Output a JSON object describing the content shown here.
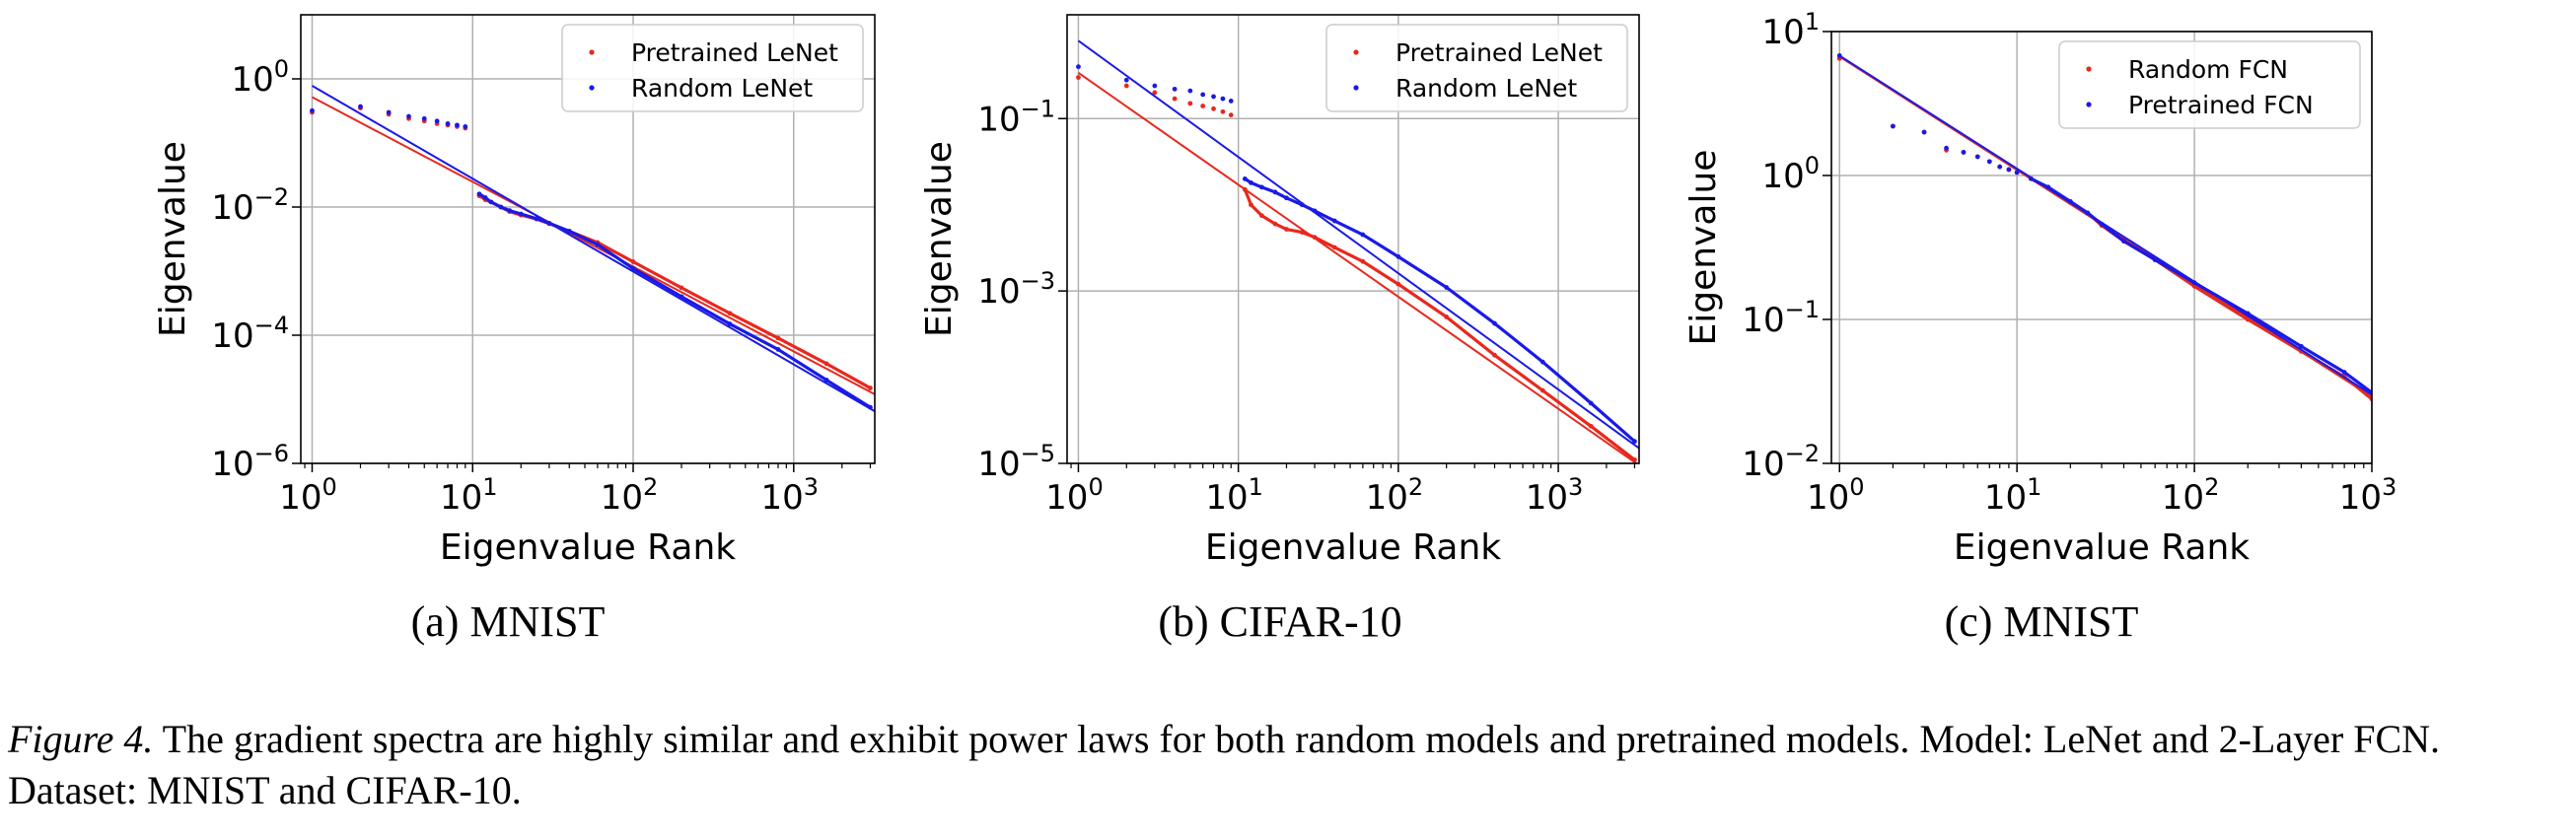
{
  "chart_data": [
    {
      "type": "scatter",
      "subcaption": "(a) MNIST",
      "xlabel": "Eigenvalue Rank",
      "ylabel": "Eigenvalue",
      "xscale": "log",
      "yscale": "log",
      "xlim": [
        0.85,
        3200
      ],
      "ylim": [
        1e-06,
        10
      ],
      "xticks": [
        1,
        10,
        100,
        1000
      ],
      "xtick_labels": [
        [
          "10",
          "0"
        ],
        [
          "10",
          "1"
        ],
        [
          "10",
          "2"
        ],
        [
          "10",
          "3"
        ]
      ],
      "yticks": [
        1e-06,
        0.0001,
        0.01,
        1
      ],
      "ytick_labels": [
        [
          "10",
          "−6"
        ],
        [
          "10",
          "−4"
        ],
        [
          "10",
          "−2"
        ],
        [
          "10",
          "0"
        ]
      ],
      "grid": true,
      "legend_position": "top-right",
      "series": [
        {
          "name": "Pretrained LeNet",
          "color": "#e8281e",
          "points": [
            [
              1,
              0.3
            ],
            [
              2,
              0.35
            ],
            [
              3,
              0.28
            ],
            [
              4,
              0.24
            ],
            [
              5,
              0.22
            ],
            [
              6,
              0.2
            ],
            [
              7,
              0.19
            ],
            [
              8,
              0.18
            ],
            [
              9,
              0.17
            ],
            [
              11,
              0.015
            ],
            [
              12,
              0.013
            ],
            [
              13,
              0.012
            ],
            [
              15,
              0.01
            ],
            [
              17,
              0.0085
            ],
            [
              20,
              0.0075
            ],
            [
              25,
              0.0065
            ],
            [
              30,
              0.0055
            ],
            [
              40,
              0.0042
            ],
            [
              60,
              0.0028
            ],
            [
              100,
              0.0014
            ],
            [
              200,
              0.00055
            ],
            [
              400,
              0.00022
            ],
            [
              800,
              9e-05
            ],
            [
              1600,
              3.6e-05
            ],
            [
              3000,
              1.5e-05
            ]
          ],
          "fit": {
            "x": [
              1,
              3200
            ],
            "y": [
              0.52,
              1.2e-05
            ]
          }
        },
        {
          "name": "Random LeNet",
          "color": "#1a1ae6",
          "points": [
            [
              1,
              0.32
            ],
            [
              2,
              0.37
            ],
            [
              3,
              0.3
            ],
            [
              4,
              0.26
            ],
            [
              5,
              0.24
            ],
            [
              6,
              0.22
            ],
            [
              7,
              0.2
            ],
            [
              8,
              0.19
            ],
            [
              9,
              0.18
            ],
            [
              11,
              0.016
            ],
            [
              12,
              0.014
            ],
            [
              13,
              0.012
            ],
            [
              15,
              0.01
            ],
            [
              17,
              0.0088
            ],
            [
              20,
              0.0078
            ],
            [
              25,
              0.0066
            ],
            [
              30,
              0.0056
            ],
            [
              40,
              0.0042
            ],
            [
              60,
              0.0026
            ],
            [
              100,
              0.0011
            ],
            [
              200,
              0.0004
            ],
            [
              400,
              0.00015
            ],
            [
              800,
              6e-05
            ],
            [
              1600,
              2e-05
            ],
            [
              3000,
              7.5e-06
            ]
          ],
          "fit": {
            "x": [
              1,
              3200
            ],
            "y": [
              0.78,
              6.5e-06
            ]
          }
        }
      ]
    },
    {
      "type": "scatter",
      "subcaption": "(b) CIFAR-10",
      "xlabel": "Eigenvalue Rank",
      "ylabel": "Eigenvalue",
      "xscale": "log",
      "yscale": "log",
      "xlim": [
        0.85,
        3200
      ],
      "ylim": [
        1e-05,
        1.6
      ],
      "xticks": [
        1,
        10,
        100,
        1000
      ],
      "xtick_labels": [
        [
          "10",
          "0"
        ],
        [
          "10",
          "1"
        ],
        [
          "10",
          "2"
        ],
        [
          "10",
          "3"
        ]
      ],
      "yticks": [
        1e-05,
        0.001,
        0.1
      ],
      "ytick_labels": [
        [
          "10",
          "−5"
        ],
        [
          "10",
          "−3"
        ],
        [
          "10",
          "−1"
        ]
      ],
      "grid": true,
      "legend_position": "top-right",
      "series": [
        {
          "name": "Pretrained LeNet",
          "color": "#e8281e",
          "points": [
            [
              1,
              0.3
            ],
            [
              2,
              0.24
            ],
            [
              3,
              0.2
            ],
            [
              4,
              0.17
            ],
            [
              5,
              0.15
            ],
            [
              6,
              0.14
            ],
            [
              7,
              0.13
            ],
            [
              8,
              0.12
            ],
            [
              9,
              0.11
            ],
            [
              11,
              0.015
            ],
            [
              12,
              0.01
            ],
            [
              14,
              0.0075
            ],
            [
              17,
              0.006
            ],
            [
              20,
              0.0052
            ],
            [
              25,
              0.0048
            ],
            [
              30,
              0.0042
            ],
            [
              40,
              0.0032
            ],
            [
              60,
              0.0022
            ],
            [
              100,
              0.0012
            ],
            [
              200,
              0.0005
            ],
            [
              400,
              0.00018
            ],
            [
              800,
              7e-05
            ],
            [
              1600,
              2.7e-05
            ],
            [
              3000,
              1.1e-05
            ]
          ],
          "fit": {
            "x": [
              1,
              3200
            ],
            "y": [
              0.34,
              9.5e-06
            ]
          }
        },
        {
          "name": "Random LeNet",
          "color": "#1a1ae6",
          "points": [
            [
              1,
              0.4
            ],
            [
              2,
              0.28
            ],
            [
              3,
              0.24
            ],
            [
              4,
              0.22
            ],
            [
              5,
              0.21
            ],
            [
              6,
              0.19
            ],
            [
              7,
              0.18
            ],
            [
              8,
              0.17
            ],
            [
              9,
              0.16
            ],
            [
              11,
              0.02
            ],
            [
              12,
              0.018
            ],
            [
              14,
              0.016
            ],
            [
              17,
              0.014
            ],
            [
              20,
              0.012
            ],
            [
              25,
              0.01
            ],
            [
              30,
              0.0085
            ],
            [
              40,
              0.0065
            ],
            [
              60,
              0.0045
            ],
            [
              100,
              0.0025
            ],
            [
              200,
              0.0011
            ],
            [
              400,
              0.00042
            ],
            [
              800,
              0.00015
            ],
            [
              1600,
              5e-05
            ],
            [
              3000,
              1.8e-05
            ]
          ],
          "fit": {
            "x": [
              1,
              3200
            ],
            "y": [
              0.8,
              1.5e-05
            ]
          }
        }
      ]
    },
    {
      "type": "scatter",
      "subcaption": "(c) MNIST",
      "xlabel": "Eigenvalue Rank",
      "ylabel": "Eigenvalue",
      "xscale": "log",
      "yscale": "log",
      "xlim": [
        0.9,
        1000
      ],
      "ylim": [
        0.01,
        10
      ],
      "xticks": [
        1,
        10,
        100,
        1000
      ],
      "xtick_labels": [
        [
          "10",
          "0"
        ],
        [
          "10",
          "1"
        ],
        [
          "10",
          "2"
        ],
        [
          "10",
          "3"
        ]
      ],
      "yticks": [
        0.01,
        0.1,
        1,
        10
      ],
      "ytick_labels": [
        [
          "10",
          "−2"
        ],
        [
          "10",
          "−1"
        ],
        [
          "10",
          "0"
        ],
        [
          "10",
          "1"
        ]
      ],
      "grid": true,
      "legend_position": "top-right",
      "series": [
        {
          "name": "Random FCN",
          "color": "#e8281e",
          "points": [
            [
              1,
              6.5
            ],
            [
              2,
              2.2
            ],
            [
              3,
              2.0
            ],
            [
              4,
              1.5
            ],
            [
              5,
              1.45
            ],
            [
              6,
              1.35
            ],
            [
              7,
              1.25
            ],
            [
              8,
              1.15
            ],
            [
              9,
              1.1
            ],
            [
              10,
              1.05
            ],
            [
              12,
              0.95
            ],
            [
              15,
              0.82
            ],
            [
              20,
              0.65
            ],
            [
              25,
              0.55
            ],
            [
              30,
              0.45
            ],
            [
              40,
              0.35
            ],
            [
              60,
              0.26
            ],
            [
              100,
              0.17
            ],
            [
              200,
              0.1
            ],
            [
              400,
              0.06
            ],
            [
              700,
              0.04
            ],
            [
              1000,
              0.028
            ]
          ],
          "fit": {
            "x": [
              1,
              1000
            ],
            "y": [
              6.7,
              0.029
            ]
          }
        },
        {
          "name": "Pretrained FCN",
          "color": "#1a1ae6",
          "points": [
            [
              1,
              6.8
            ],
            [
              2,
              2.2
            ],
            [
              3,
              2.0
            ],
            [
              4,
              1.55
            ],
            [
              5,
              1.45
            ],
            [
              6,
              1.35
            ],
            [
              7,
              1.25
            ],
            [
              8,
              1.15
            ],
            [
              9,
              1.1
            ],
            [
              10,
              1.05
            ],
            [
              12,
              0.95
            ],
            [
              15,
              0.83
            ],
            [
              20,
              0.66
            ],
            [
              25,
              0.55
            ],
            [
              30,
              0.46
            ],
            [
              40,
              0.35
            ],
            [
              60,
              0.26
            ],
            [
              100,
              0.18
            ],
            [
              200,
              0.11
            ],
            [
              400,
              0.065
            ],
            [
              700,
              0.043
            ],
            [
              1000,
              0.031
            ]
          ],
          "fit": {
            "x": [
              1,
              1000
            ],
            "y": [
              6.8,
              0.03
            ]
          }
        }
      ]
    }
  ],
  "caption": {
    "label": "Figure 4.",
    "text": " The gradient spectra are highly similar and exhibit power laws for both random models and pretrained models. Model: LeNet and 2-Layer FCN. Dataset: MNIST and CIFAR-10."
  }
}
